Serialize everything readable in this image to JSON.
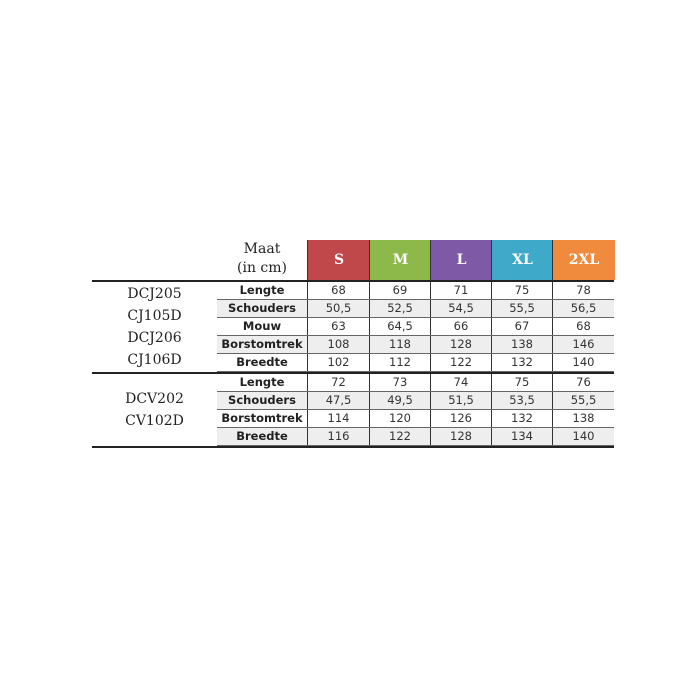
{
  "header": {
    "maat_line1": "Maat",
    "maat_line2": "(in cm)"
  },
  "sizes": [
    {
      "label": "S",
      "color": "#c0474a"
    },
    {
      "label": "M",
      "color": "#8db94a"
    },
    {
      "label": "L",
      "color": "#7e5aa6"
    },
    {
      "label": "XL",
      "color": "#3fa9c9"
    },
    {
      "label": "2XL",
      "color": "#f08a3c"
    }
  ],
  "groups": [
    {
      "models": [
        "DCJ205",
        "CJ105D",
        "DCJ206",
        "CJ106D"
      ],
      "rows": [
        {
          "label": "Lengte",
          "values": [
            "68",
            "69",
            "71",
            "75",
            "78"
          ]
        },
        {
          "label": "Schouders",
          "values": [
            "50,5",
            "52,5",
            "54,5",
            "55,5",
            "56,5"
          ]
        },
        {
          "label": "Mouw",
          "values": [
            "63",
            "64,5",
            "66",
            "67",
            "68"
          ]
        },
        {
          "label": "Borstomtrek",
          "values": [
            "108",
            "118",
            "128",
            "138",
            "146"
          ]
        },
        {
          "label": "Breedte",
          "values": [
            "102",
            "112",
            "122",
            "132",
            "140"
          ]
        }
      ]
    },
    {
      "models": [
        "DCV202",
        "CV102D"
      ],
      "rows": [
        {
          "label": "Lengte",
          "values": [
            "72",
            "73",
            "74",
            "75",
            "76"
          ]
        },
        {
          "label": "Schouders",
          "values": [
            "47,5",
            "49,5",
            "51,5",
            "53,5",
            "55,5"
          ]
        },
        {
          "label": "Borstomtrek",
          "values": [
            "114",
            "120",
            "126",
            "132",
            "138"
          ]
        },
        {
          "label": "Breedte",
          "values": [
            "116",
            "122",
            "128",
            "134",
            "140"
          ]
        }
      ]
    }
  ]
}
